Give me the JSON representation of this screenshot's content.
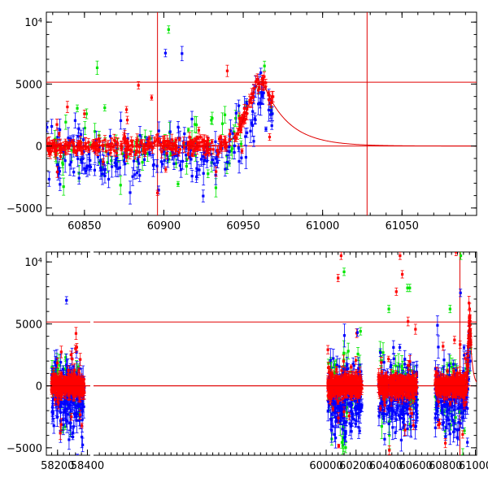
{
  "chart_data": [
    {
      "type": "scatter",
      "title": "",
      "xlabel": "",
      "ylabel": "",
      "xlim": [
        60826,
        61097
      ],
      "ylim": [
        -5600,
        10800
      ],
      "x_ticks": [
        60850,
        60900,
        60950,
        61000,
        61050
      ],
      "y_ticks": [
        -5000,
        0,
        5000
      ],
      "y_top_label": "10⁴",
      "grid": false,
      "legend": "none",
      "reference_lines": {
        "vertical": [
          60896,
          61028
        ],
        "horizontal": [
          5150,
          0
        ]
      },
      "model_curve": {
        "baseline": 0,
        "peak_x": 60962,
        "peak_y": 5250,
        "rise_width": 9,
        "decay_time": 16
      },
      "series": [
        {
          "name": "",
          "color": "#0000ff",
          "seed": 11,
          "x_range": [
            60826,
            60969
          ],
          "n": 210,
          "offset": -800,
          "spread": 1200,
          "follow": 0.9
        },
        {
          "name": "",
          "color": "#00e600",
          "seed": 23,
          "x_range": [
            60826,
            60969
          ],
          "n": 90,
          "offset": -300,
          "spread": 1100,
          "follow": 0.9
        },
        {
          "name": "",
          "color": "#ff0000",
          "seed": 37,
          "x_range": [
            60826,
            60969
          ],
          "n": 340,
          "offset": 0,
          "spread": 320,
          "follow": 1.0
        }
      ],
      "outliers": [
        {
          "x": 60901,
          "y": 7500,
          "color": "#0000ff"
        },
        {
          "x": 60903,
          "y": 9400,
          "color": "#00e600"
        },
        {
          "x": 60884,
          "y": 4900,
          "color": "#ff0000"
        },
        {
          "x": 60850,
          "y": 2600,
          "color": "#ff0000"
        },
        {
          "x": 60877,
          "y": 2100,
          "color": "#ff0000"
        }
      ]
    },
    {
      "type": "scatter",
      "title": "",
      "xlabel": "",
      "ylabel": "",
      "xlim": [
        58125,
        61008
      ],
      "ylim": [
        -5600,
        10800
      ],
      "axis_break_at": 58430,
      "x_ticks": [
        58200,
        58400,
        60000,
        60200,
        60400,
        60600,
        60800,
        61000
      ],
      "y_ticks": [
        -5000,
        0,
        5000
      ],
      "y_top_label": "10⁴",
      "grid": false,
      "legend": "none",
      "reference_lines": {
        "vertical": [
          60896
        ],
        "horizontal": [
          5150,
          0
        ]
      },
      "model_curve": {
        "baseline": 0,
        "peak_x": 60962,
        "peak_y": 5250,
        "rise_width": 9,
        "decay_time": 16
      },
      "seasons": [
        [
          58160,
          58380
        ],
        [
          60010,
          60240
        ],
        [
          60350,
          60610
        ],
        [
          60730,
          60969
        ]
      ],
      "series": [
        {
          "name": "",
          "color": "#0000ff",
          "seed": 51,
          "n_per_season": 180,
          "offset": -900,
          "spread": 1300,
          "follow": 0.9
        },
        {
          "name": "",
          "color": "#00e600",
          "seed": 63,
          "n_per_season": 55,
          "offset": -400,
          "spread": 1500,
          "follow": 0.9
        },
        {
          "name": "",
          "color": "#ff0000",
          "seed": 77,
          "n_per_season": 320,
          "offset": 0,
          "spread": 400,
          "follow": 1.0
        }
      ],
      "outliers": [
        {
          "x": 58260,
          "y": 6900,
          "color": "#0000ff"
        },
        {
          "x": 58320,
          "y": 3000,
          "color": "#ff0000"
        },
        {
          "x": 58290,
          "y": 2500,
          "color": "#ff0000"
        },
        {
          "x": 60100,
          "y": 10500,
          "color": "#ff0000"
        },
        {
          "x": 60120,
          "y": 9200,
          "color": "#00e600"
        },
        {
          "x": 60080,
          "y": 8700,
          "color": "#ff0000"
        },
        {
          "x": 60210,
          "y": 4300,
          "color": "#0000ff"
        },
        {
          "x": 60230,
          "y": 4400,
          "color": "#00e600"
        },
        {
          "x": 60420,
          "y": 6200,
          "color": "#00e600"
        },
        {
          "x": 60470,
          "y": 7600,
          "color": "#ff0000"
        },
        {
          "x": 60495,
          "y": 10500,
          "color": "#ff0000"
        },
        {
          "x": 60510,
          "y": 9000,
          "color": "#ff0000"
        },
        {
          "x": 60545,
          "y": 7900,
          "color": "#00e600"
        },
        {
          "x": 60560,
          "y": 7900,
          "color": "#00e600"
        },
        {
          "x": 60830,
          "y": 6200,
          "color": "#00e600"
        },
        {
          "x": 60870,
          "y": 10800,
          "color": "#ff0000"
        },
        {
          "x": 60900,
          "y": 7500,
          "color": "#0000ff"
        },
        {
          "x": 60902,
          "y": 10500,
          "color": "#00e600"
        },
        {
          "x": 60860,
          "y": 3700,
          "color": "#ff0000"
        }
      ]
    }
  ]
}
